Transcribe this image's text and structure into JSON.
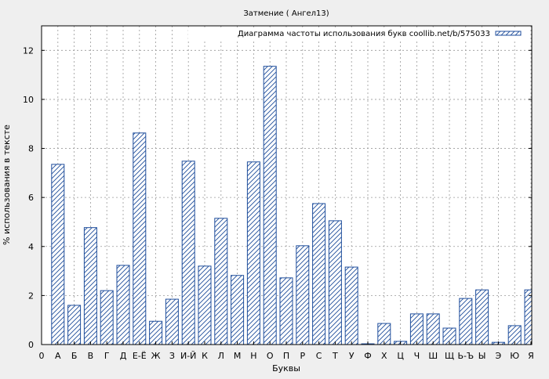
{
  "chart_data": {
    "type": "bar",
    "title": "Затмение ( Ангел13)",
    "xlabel": "Буквы",
    "ylabel": "% использования в тексте",
    "legend": {
      "label": "Диаграмма частоты использования букв coollib.net/b/575033",
      "placement": "top-right"
    },
    "x_origin_label": "0",
    "categories": [
      "А",
      "Б",
      "В",
      "Г",
      "Д",
      "Е-Ё",
      "Ж",
      "З",
      "И-Й",
      "К",
      "Л",
      "М",
      "Н",
      "О",
      "П",
      "Р",
      "С",
      "Т",
      "У",
      "Ф",
      "Х",
      "Ц",
      "Ч",
      "Ш",
      "Щ",
      "Ь-Ъ",
      "Ы",
      "Э",
      "Ю",
      "Я"
    ],
    "series": [
      {
        "values": [
          7.35,
          1.6,
          4.77,
          2.2,
          3.23,
          8.63,
          0.95,
          1.85,
          7.48,
          3.2,
          5.15,
          2.82,
          7.45,
          11.35,
          2.72,
          4.03,
          5.75,
          5.05,
          3.16,
          0.03,
          0.86,
          0.13,
          1.25,
          1.25,
          0.67,
          1.88,
          2.23,
          0.09,
          0.77,
          2.23
        ]
      }
    ],
    "ylim": [
      0,
      13
    ],
    "yticks": [
      0,
      2,
      4,
      6,
      8,
      10,
      12
    ],
    "grid": true,
    "colors": {
      "bar_stroke": "#1f4e9c",
      "hatch": "#1f4e9c",
      "bar_fill": "#ffffff",
      "grid": "#999999",
      "background": "#efefef"
    }
  }
}
